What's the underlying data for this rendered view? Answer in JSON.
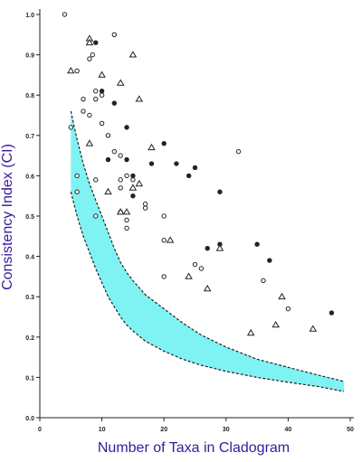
{
  "chart_data": {
    "type": "scatter",
    "title": "",
    "xlabel": "Number of Taxa in Cladogram",
    "ylabel": "Consistency Index (CI)",
    "xlim": [
      0,
      50
    ],
    "ylim": [
      0,
      1.0
    ],
    "x_ticks": [
      0,
      10,
      20,
      30,
      40,
      50
    ],
    "y_ticks": [
      0.0,
      0.1,
      0.2,
      0.3,
      0.4,
      0.5,
      0.6,
      0.7,
      0.8,
      0.9,
      1.0
    ],
    "grid": false,
    "legend": "none",
    "colors": {
      "axis_label": "#3a1a9a",
      "band_fill": "#7ff3f3",
      "ink": "#222222"
    },
    "band": {
      "upper": [
        [
          5,
          0.76
        ],
        [
          6,
          0.69
        ],
        [
          7,
          0.63
        ],
        [
          8,
          0.58
        ],
        [
          9,
          0.54
        ],
        [
          10,
          0.5
        ],
        [
          11,
          0.46
        ],
        [
          12,
          0.42
        ],
        [
          13,
          0.385
        ],
        [
          14,
          0.36
        ],
        [
          15,
          0.34
        ],
        [
          17,
          0.305
        ],
        [
          20,
          0.27
        ],
        [
          23,
          0.235
        ],
        [
          26,
          0.205
        ],
        [
          30,
          0.175
        ],
        [
          35,
          0.145
        ],
        [
          40,
          0.125
        ],
        [
          45,
          0.105
        ],
        [
          49,
          0.09
        ]
      ],
      "lower": [
        [
          5,
          0.56
        ],
        [
          6,
          0.5
        ],
        [
          7,
          0.45
        ],
        [
          8,
          0.41
        ],
        [
          9,
          0.37
        ],
        [
          10,
          0.335
        ],
        [
          11,
          0.3
        ],
        [
          12,
          0.275
        ],
        [
          13,
          0.25
        ],
        [
          14,
          0.23
        ],
        [
          15,
          0.215
        ],
        [
          17,
          0.19
        ],
        [
          20,
          0.165
        ],
        [
          23,
          0.145
        ],
        [
          26,
          0.13
        ],
        [
          30,
          0.115
        ],
        [
          35,
          0.1
        ],
        [
          40,
          0.088
        ],
        [
          45,
          0.077
        ],
        [
          49,
          0.065
        ]
      ]
    },
    "series": [
      {
        "marker": "open-circle",
        "points": [
          [
            4,
            1.0
          ],
          [
            12,
            0.95
          ],
          [
            6,
            0.86
          ],
          [
            8,
            0.89
          ],
          [
            8.5,
            0.9
          ],
          [
            7,
            0.79
          ],
          [
            9,
            0.81
          ],
          [
            9,
            0.79
          ],
          [
            10,
            0.8
          ],
          [
            5,
            0.72
          ],
          [
            7,
            0.76
          ],
          [
            8,
            0.75
          ],
          [
            10,
            0.73
          ],
          [
            11,
            0.7
          ],
          [
            12,
            0.66
          ],
          [
            13,
            0.65
          ],
          [
            9,
            0.59
          ],
          [
            13,
            0.59
          ],
          [
            14,
            0.6
          ],
          [
            13,
            0.57
          ],
          [
            15,
            0.59
          ],
          [
            6,
            0.6
          ],
          [
            6,
            0.56
          ],
          [
            9,
            0.5
          ],
          [
            13,
            0.51
          ],
          [
            14,
            0.47
          ],
          [
            14,
            0.49
          ],
          [
            17,
            0.52
          ],
          [
            17,
            0.53
          ],
          [
            20,
            0.5
          ],
          [
            20,
            0.44
          ],
          [
            20,
            0.35
          ],
          [
            25,
            0.38
          ],
          [
            26,
            0.37
          ],
          [
            32,
            0.66
          ],
          [
            36,
            0.34
          ],
          [
            40,
            0.27
          ]
        ]
      },
      {
        "marker": "filled-circle",
        "points": [
          [
            9,
            0.93
          ],
          [
            10,
            0.81
          ],
          [
            12,
            0.78
          ],
          [
            14,
            0.72
          ],
          [
            11,
            0.64
          ],
          [
            14,
            0.64
          ],
          [
            18,
            0.63
          ],
          [
            20,
            0.68
          ],
          [
            22,
            0.63
          ],
          [
            24,
            0.6
          ],
          [
            25,
            0.62
          ],
          [
            29,
            0.56
          ],
          [
            15,
            0.6
          ],
          [
            15,
            0.55
          ],
          [
            27,
            0.42
          ],
          [
            29,
            0.43
          ],
          [
            35,
            0.43
          ],
          [
            37,
            0.39
          ],
          [
            47,
            0.26
          ]
        ]
      },
      {
        "marker": "open-triangle",
        "points": [
          [
            5,
            0.86
          ],
          [
            8,
            0.94
          ],
          [
            8,
            0.93
          ],
          [
            10,
            0.85
          ],
          [
            13,
            0.83
          ],
          [
            15,
            0.9
          ],
          [
            16,
            0.79
          ],
          [
            8,
            0.68
          ],
          [
            18,
            0.67
          ],
          [
            11,
            0.56
          ],
          [
            13,
            0.51
          ],
          [
            14,
            0.51
          ],
          [
            15,
            0.57
          ],
          [
            16,
            0.58
          ],
          [
            21,
            0.44
          ],
          [
            24,
            0.35
          ],
          [
            27,
            0.32
          ],
          [
            29,
            0.42
          ],
          [
            34,
            0.21
          ],
          [
            38,
            0.23
          ],
          [
            39,
            0.3
          ],
          [
            44,
            0.22
          ]
        ]
      }
    ]
  }
}
